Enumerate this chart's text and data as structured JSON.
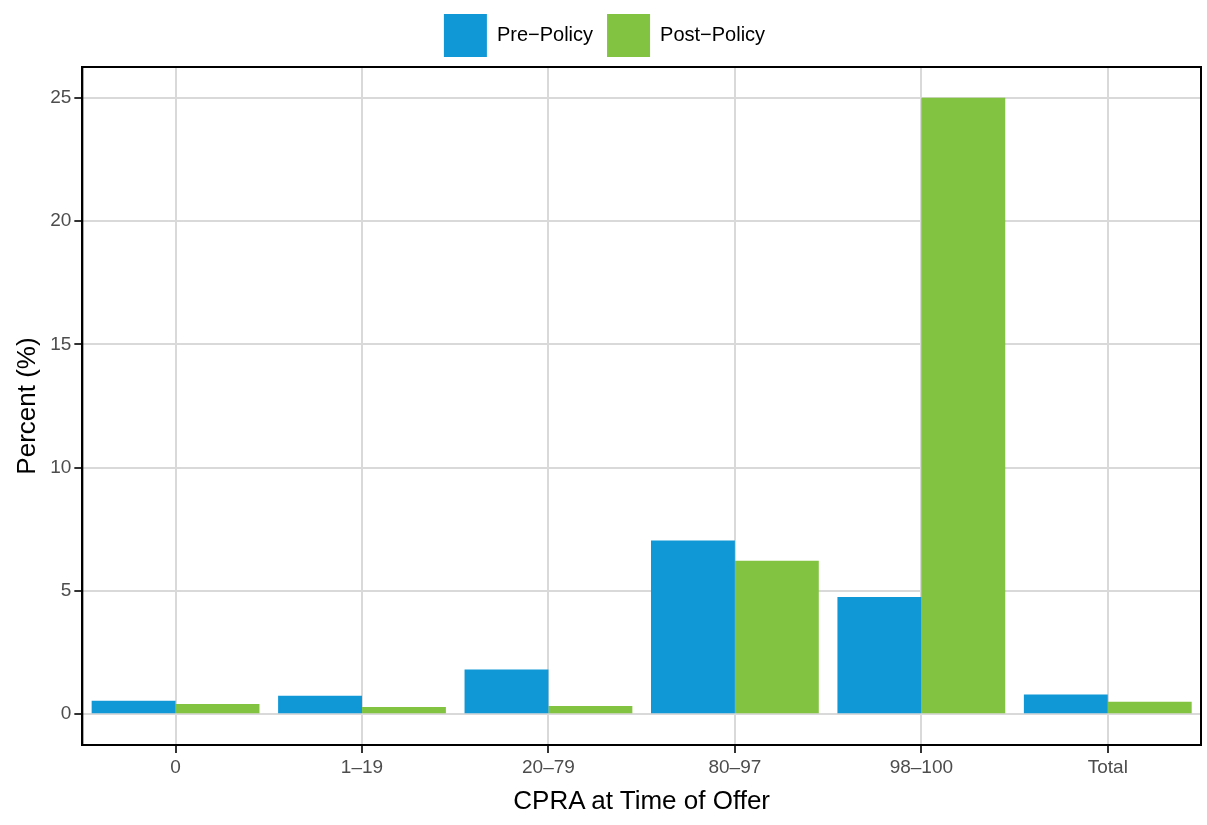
{
  "chart_data": {
    "type": "bar",
    "xlabel": "CPRA at Time of Offer",
    "ylabel": "Percent (%)",
    "categories": [
      "0",
      "1–19",
      "20–79",
      "80–97",
      "98–100",
      "Total"
    ],
    "series": [
      {
        "name": "Pre−Policy",
        "color": "#1098d6",
        "values": [
          0.54,
          0.75,
          1.81,
          7.04,
          4.75,
          0.8
        ]
      },
      {
        "name": "Post−Policy",
        "color": "#82c341",
        "values": [
          0.41,
          0.29,
          0.33,
          6.22,
          25,
          0.5
        ]
      }
    ],
    "ylim": [
      -1.25,
      26.25
    ],
    "yticks": [
      0,
      5,
      10,
      15,
      20,
      25
    ],
    "grid": true,
    "legend": "top"
  }
}
